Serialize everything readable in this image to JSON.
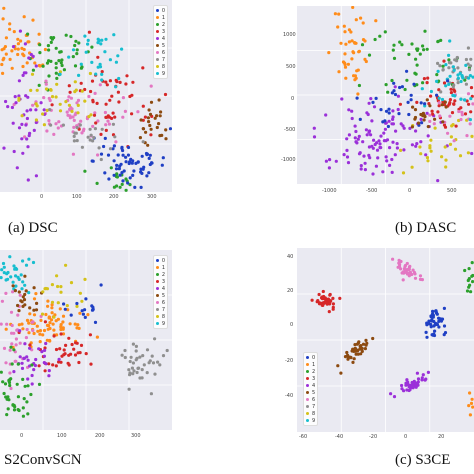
{
  "captions": {
    "a": "(a) DSC",
    "b": "(b) DASC",
    "c": "S2ConvSCN",
    "d": "(c) S3CE"
  },
  "legend_labels": [
    "0",
    "1",
    "2",
    "3",
    "4",
    "5",
    "6",
    "7",
    "8",
    "9"
  ],
  "palette": [
    "#1f3fc4",
    "#ff8c1a",
    "#2ca02c",
    "#d62728",
    "#9b30d9",
    "#8c4a10",
    "#e377c2",
    "#8f8f8f",
    "#d4c21a",
    "#17becf"
  ],
  "chart_data": [
    {
      "id": "a",
      "type": "scatter",
      "title": "(a) DSC",
      "xticks": [
        "0",
        "100",
        "200",
        "300"
      ],
      "yticks": [],
      "legend": {
        "placement": "top-right",
        "labels": [
          "0",
          "1",
          "2",
          "3",
          "4",
          "5",
          "6",
          "7",
          "8",
          "9"
        ]
      },
      "clusters": [
        {
          "label": "1",
          "cx": 10,
          "cy": 45,
          "sx": 20,
          "sy": 14,
          "n": 70
        },
        {
          "label": "2",
          "cx": 58,
          "cy": 55,
          "sx": 16,
          "sy": 14,
          "n": 45
        },
        {
          "label": "2",
          "cx": 110,
          "cy": 188,
          "sx": 16,
          "sy": 12,
          "n": 25
        },
        {
          "label": "6",
          "cx": 75,
          "cy": 118,
          "sx": 28,
          "sy": 16,
          "n": 70
        },
        {
          "label": "3",
          "cx": 110,
          "cy": 100,
          "sx": 20,
          "sy": 20,
          "n": 55
        },
        {
          "label": "4",
          "cx": 25,
          "cy": 110,
          "sx": 12,
          "sy": 30,
          "n": 45
        },
        {
          "label": "0",
          "cx": 130,
          "cy": 162,
          "sx": 18,
          "sy": 13,
          "n": 65
        },
        {
          "label": "5",
          "cx": 150,
          "cy": 120,
          "sx": 10,
          "sy": 12,
          "n": 25
        },
        {
          "label": "8",
          "cx": 55,
          "cy": 95,
          "sx": 24,
          "sy": 14,
          "n": 35
        },
        {
          "label": "7",
          "cx": 95,
          "cy": 135,
          "sx": 20,
          "sy": 10,
          "n": 25
        },
        {
          "label": "9",
          "cx": 100,
          "cy": 60,
          "sx": 14,
          "sy": 14,
          "n": 30
        }
      ]
    },
    {
      "id": "b",
      "type": "scatter",
      "title": "(b) DASC",
      "xticks": [
        "-1000",
        "-500",
        "0",
        "500"
      ],
      "yticks": [
        "1000",
        "500",
        "0",
        "-500",
        "-1000"
      ],
      "legend": null,
      "clusters": [
        {
          "label": "1",
          "cx": 55,
          "cy": 45,
          "sx": 10,
          "sy": 18,
          "n": 45
        },
        {
          "label": "4",
          "cx": 80,
          "cy": 130,
          "sx": 30,
          "sy": 22,
          "n": 110
        },
        {
          "label": "3",
          "cx": 150,
          "cy": 95,
          "sx": 16,
          "sy": 14,
          "n": 45
        },
        {
          "label": "2",
          "cx": 120,
          "cy": 60,
          "sx": 22,
          "sy": 18,
          "n": 45
        },
        {
          "label": "7",
          "cx": 155,
          "cy": 65,
          "sx": 14,
          "sy": 12,
          "n": 35
        },
        {
          "label": "8",
          "cx": 140,
          "cy": 140,
          "sx": 20,
          "sy": 14,
          "n": 30
        },
        {
          "label": "6",
          "cx": 160,
          "cy": 110,
          "sx": 14,
          "sy": 14,
          "n": 25
        },
        {
          "label": "9",
          "cx": 160,
          "cy": 75,
          "sx": 16,
          "sy": 18,
          "n": 40
        },
        {
          "label": "0",
          "cx": 105,
          "cy": 90,
          "sx": 20,
          "sy": 16,
          "n": 30
        },
        {
          "label": "5",
          "cx": 130,
          "cy": 110,
          "sx": 14,
          "sy": 10,
          "n": 20
        }
      ]
    },
    {
      "id": "c",
      "type": "scatter",
      "title": "S2ConvSCN",
      "xticks": [
        "0",
        "100",
        "200",
        "300"
      ],
      "yticks": [],
      "legend": {
        "placement": "top-right",
        "labels": [
          "0",
          "1",
          "2",
          "3",
          "4",
          "5",
          "6",
          "7",
          "8",
          "9"
        ]
      },
      "clusters": [
        {
          "label": "9",
          "cx": 12,
          "cy": 22,
          "sx": 10,
          "sy": 10,
          "n": 40
        },
        {
          "label": "1",
          "cx": 45,
          "cy": 75,
          "sx": 20,
          "sy": 10,
          "n": 75
        },
        {
          "label": "3",
          "cx": 70,
          "cy": 100,
          "sx": 18,
          "sy": 10,
          "n": 40
        },
        {
          "label": "6",
          "cx": 15,
          "cy": 90,
          "sx": 10,
          "sy": 22,
          "n": 40
        },
        {
          "label": "4",
          "cx": 35,
          "cy": 110,
          "sx": 12,
          "sy": 10,
          "n": 30
        },
        {
          "label": "2",
          "cx": 12,
          "cy": 140,
          "sx": 10,
          "sy": 18,
          "n": 45
        },
        {
          "label": "7",
          "cx": 140,
          "cy": 110,
          "sx": 10,
          "sy": 13,
          "n": 40
        },
        {
          "label": "5",
          "cx": 25,
          "cy": 50,
          "sx": 10,
          "sy": 10,
          "n": 20
        },
        {
          "label": "8",
          "cx": 60,
          "cy": 40,
          "sx": 15,
          "sy": 10,
          "n": 20
        },
        {
          "label": "0",
          "cx": 90,
          "cy": 60,
          "sx": 10,
          "sy": 10,
          "n": 15
        }
      ]
    },
    {
      "id": "d",
      "type": "scatter",
      "title": "(c) S3CE",
      "xticks": [
        "-60",
        "-40",
        "-20",
        "0",
        "20"
      ],
      "yticks": [
        "40",
        "20",
        "0",
        "-20",
        "-40"
      ],
      "legend": {
        "placement": "bottom-left",
        "labels": [
          "0",
          "1",
          "2",
          "3",
          "4",
          "5",
          "6",
          "7",
          "8",
          "9"
        ]
      },
      "clusters": [
        {
          "label": "3",
          "cx": 28,
          "cy": 52,
          "sx": 5,
          "sy": 4,
          "n": 45
        },
        {
          "label": "6",
          "cx": 110,
          "cy": 22,
          "sx": 8,
          "sy": 4,
          "n": 40,
          "angle": 0.6
        },
        {
          "label": "2",
          "cx": 175,
          "cy": 28,
          "sx": 3,
          "sy": 6,
          "n": 20
        },
        {
          "label": "5",
          "cx": 60,
          "cy": 103,
          "sx": 9,
          "sy": 3,
          "n": 40,
          "angle": -0.8
        },
        {
          "label": "0",
          "cx": 138,
          "cy": 75,
          "sx": 5,
          "sy": 8,
          "n": 45
        },
        {
          "label": "4",
          "cx": 113,
          "cy": 138,
          "sx": 8,
          "sy": 3,
          "n": 40,
          "angle": -0.6
        },
        {
          "label": "1",
          "cx": 177,
          "cy": 158,
          "sx": 3,
          "sy": 7,
          "n": 20
        }
      ]
    }
  ]
}
